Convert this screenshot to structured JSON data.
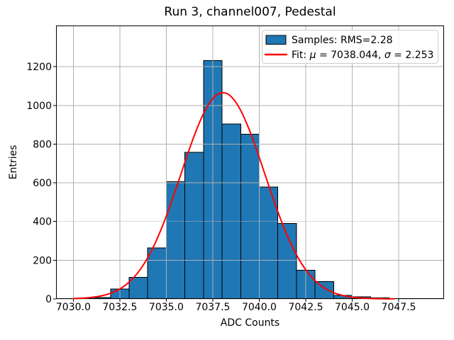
{
  "chart_data": {
    "type": "histogram",
    "title": "Run 3, channel007, Pedestal",
    "xlabel": "ADC Counts",
    "ylabel": "Entries",
    "grid": true,
    "legend_position": "upper right",
    "xlim": [
      7029.07,
      7049.94
    ],
    "ylim": [
      0,
      1413
    ],
    "xticks": {
      "values": [
        7030.0,
        7032.5,
        7035.0,
        7037.5,
        7040.0,
        7042.5,
        7045.0,
        7047.5
      ],
      "labels": [
        "7030.0",
        "7032.5",
        "7035.0",
        "7037.5",
        "7040.0",
        "7042.5",
        "7045.0",
        "7047.5"
      ]
    },
    "yticks": {
      "values": [
        0,
        200,
        400,
        600,
        800,
        1000,
        1200
      ],
      "labels": [
        "0",
        "200",
        "400",
        "600",
        "800",
        "1000",
        "1200"
      ]
    },
    "bins": {
      "start": 7030,
      "width": 1,
      "counts": [
        2,
        7,
        51,
        112,
        264,
        605,
        757,
        1232,
        905,
        851,
        579,
        389,
        148,
        90,
        18,
        11,
        5
      ]
    },
    "fit": {
      "mu": 7038.044,
      "sigma": 2.253,
      "amplitude": 1066,
      "x_start": 7030.0,
      "x_end": 7047.25
    },
    "rms": 2.28,
    "legend": {
      "entries": [
        {
          "swatch": "patch",
          "name": "samples",
          "parts": [
            {
              "text": "Samples: RMS=2.28"
            }
          ]
        },
        {
          "swatch": "line",
          "name": "fit",
          "parts": [
            {
              "text": "Fit: "
            },
            {
              "text": "μ",
              "italic": true
            },
            {
              "text": " = 7038.044, "
            },
            {
              "text": "σ",
              "italic": true
            },
            {
              "text": " = 2.253"
            }
          ]
        }
      ]
    },
    "colors": {
      "bar_fill": "#1f77b4",
      "bar_edge": "#000000",
      "fit_line": "#ff0000",
      "grid": "#b0b0b0",
      "spine": "#000000",
      "legend_border": "#cccccc",
      "legend_background": "rgba(255,255,255,0.85)",
      "background": "#ffffff"
    }
  }
}
